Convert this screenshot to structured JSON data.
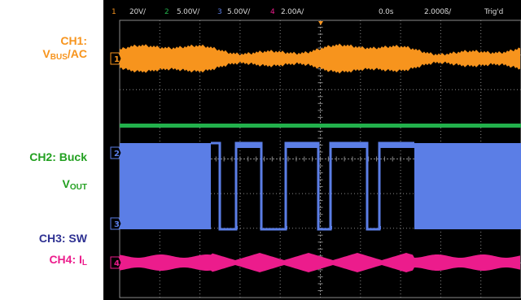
{
  "labels": {
    "ch1_line1": "CH1:",
    "ch1_v": "V",
    "ch1_sub": "BUS",
    "ch1_suffix": "/AC",
    "ch2_line1": "CH2: Buck",
    "ch2_v": "V",
    "ch2_sub": "OUT",
    "ch3": "CH3: SW",
    "ch4_prefix": "CH4: I",
    "ch4_sub": "L"
  },
  "status_bar": {
    "ch1_num": "1",
    "ch1_scale": "20V/",
    "ch2_num": "2",
    "ch2_scale": "5.00V/",
    "ch3_num": "3",
    "ch3_scale": "5.00V/",
    "ch4_num": "4",
    "ch4_scale": "2.00A/",
    "time_offset": "0.0s",
    "timebase": "2.000ß/",
    "trigger_status": "Trig'd"
  },
  "markers": {
    "ch1": "1",
    "ch2": "2",
    "ch3": "3",
    "ch4": "4"
  },
  "colors": {
    "ch1": "#f7941d",
    "ch2": "#22b14c",
    "ch3": "#5b7ee6",
    "ch4": "#ec1c8c",
    "ch3_label": "#2e3192",
    "ch2_label": "#22a020",
    "grid": "#8a8a8a",
    "background": "#000000",
    "status_text": "#d8d8d8"
  }
}
